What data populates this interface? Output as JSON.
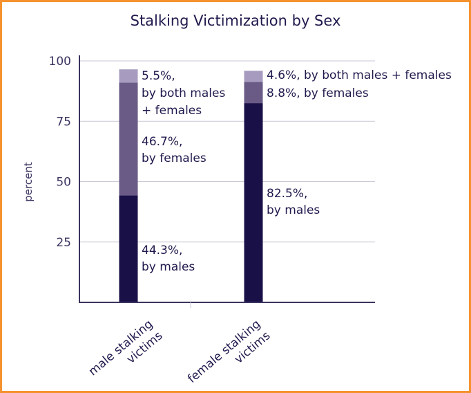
{
  "chart_data": {
    "type": "bar",
    "stacked": true,
    "title": "Stalking Victimization by Sex",
    "xlabel": "",
    "ylabel": "percent",
    "ylim": [
      0,
      100
    ],
    "yticks": [
      25,
      50,
      75,
      100
    ],
    "grid": true,
    "categories": [
      "male stalking victims",
      "female stalking victims"
    ],
    "category_label_lines": [
      [
        "male stalking",
        "victims"
      ],
      [
        "female stalking",
        "victims"
      ]
    ],
    "series": [
      {
        "name": "by males",
        "color": "#1a1048",
        "values": [
          44.3,
          82.5
        ]
      },
      {
        "name": "by females",
        "color": "#6a5a86",
        "values": [
          46.7,
          8.8
        ]
      },
      {
        "name": "by both males + females",
        "color": "#a79cbf",
        "values": [
          5.5,
          4.6
        ]
      }
    ],
    "data_labels": [
      [
        [
          "44.3%,",
          "by males"
        ],
        [
          "82.5%,",
          "by males"
        ]
      ],
      [
        [
          "46.7%,",
          "by females"
        ],
        [
          "8.8%, by females"
        ]
      ],
      [
        [
          "5.5%,",
          "by both males",
          "+ females"
        ],
        [
          "4.6%, by both males + females"
        ]
      ]
    ]
  },
  "colors": {
    "frame": "#f5922f",
    "axis": "#3a3560",
    "grid": "#c9c5d4"
  }
}
